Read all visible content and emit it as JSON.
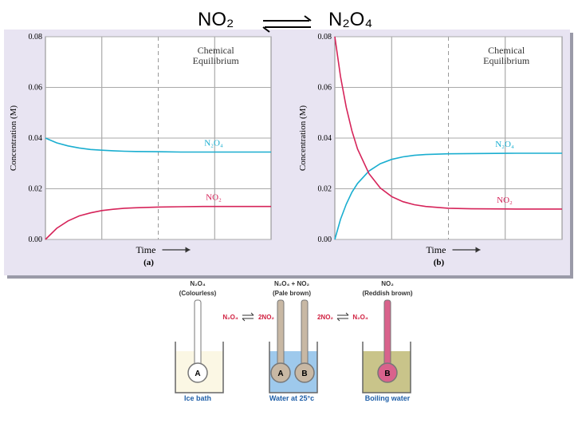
{
  "header": {
    "reactant": "NO₂",
    "product": "N₂O₄"
  },
  "chart_data": [
    {
      "type": "line",
      "panel": "(a)",
      "xlabel": "Time",
      "ylabel": "Concentration (M)",
      "annotation": [
        "Chemical",
        "Equilibrium"
      ],
      "x": [
        0,
        0.5,
        1,
        1.5,
        2,
        2.5,
        3,
        3.5,
        4,
        5,
        6,
        7,
        8,
        10
      ],
      "xlim": [
        0,
        10
      ],
      "ylim": [
        0,
        0.08
      ],
      "yticks": [
        {
          "value": 0,
          "label": "0.00"
        },
        {
          "value": 0.02,
          "label": "0.02"
        },
        {
          "value": 0.04,
          "label": "0.04"
        },
        {
          "value": 0.06,
          "label": "0.06"
        },
        {
          "value": 0.08,
          "label": "0.08"
        }
      ],
      "series": [
        {
          "name": "N₂O₄",
          "color": "#1aaed0",
          "values": [
            0.04,
            0.0381,
            0.0369,
            0.0361,
            0.0355,
            0.0352,
            0.035,
            0.0348,
            0.0347,
            0.0346,
            0.0345,
            0.0345,
            0.0345,
            0.0345
          ]
        },
        {
          "name": "NO₂",
          "color": "#d6245a",
          "values": [
            0,
            0.0044,
            0.0073,
            0.0093,
            0.0105,
            0.0114,
            0.0119,
            0.0123,
            0.0125,
            0.0128,
            0.0129,
            0.013,
            0.013,
            0.013
          ]
        }
      ]
    },
    {
      "type": "line",
      "panel": "(b)",
      "xlabel": "Time",
      "ylabel": "Concentration (M)",
      "annotation": [
        "Chemical",
        "Equilibrium"
      ],
      "x": [
        0,
        0.25,
        0.5,
        0.75,
        1,
        1.5,
        2,
        2.5,
        3,
        3.5,
        4,
        5,
        6,
        8,
        10
      ],
      "xlim": [
        0,
        10
      ],
      "ylim": [
        0,
        0.08
      ],
      "yticks": [
        {
          "value": 0,
          "label": "0.00"
        },
        {
          "value": 0.02,
          "label": "0.02"
        },
        {
          "value": 0.04,
          "label": "0.04"
        },
        {
          "value": 0.06,
          "label": "0.06"
        },
        {
          "value": 0.08,
          "label": "0.08"
        }
      ],
      "series": [
        {
          "name": "N₂O₄",
          "color": "#1aaed0",
          "values": [
            0,
            0.0079,
            0.0139,
            0.0186,
            0.0221,
            0.027,
            0.0299,
            0.0316,
            0.0326,
            0.0332,
            0.0335,
            0.0338,
            0.0339,
            0.034,
            0.034
          ]
        },
        {
          "name": "NO₂",
          "color": "#d6245a",
          "values": [
            0.08,
            0.0643,
            0.0522,
            0.0429,
            0.0357,
            0.026,
            0.0203,
            0.0169,
            0.0149,
            0.0137,
            0.013,
            0.0123,
            0.0121,
            0.012,
            0.012
          ]
        }
      ]
    }
  ],
  "diagram": {
    "states": [
      {
        "species": "N₂O₄",
        "note": "(Colourless)",
        "bulbs": [
          "A"
        ],
        "caption": "Ice bath"
      },
      {
        "species": "N₂O₄ + NO₂",
        "note": "(Pale brown)",
        "bulbs": [
          "A",
          "B"
        ],
        "caption": "Water at 25°c"
      },
      {
        "species": "NO₂",
        "note": "(Reddish brown)",
        "bulbs": [
          "B"
        ],
        "caption": "Boiling water"
      }
    ],
    "left_equation": [
      "N₂O₄",
      "2NO₂"
    ],
    "right_equation": [
      "2NO₂",
      "N₂O₄"
    ]
  }
}
